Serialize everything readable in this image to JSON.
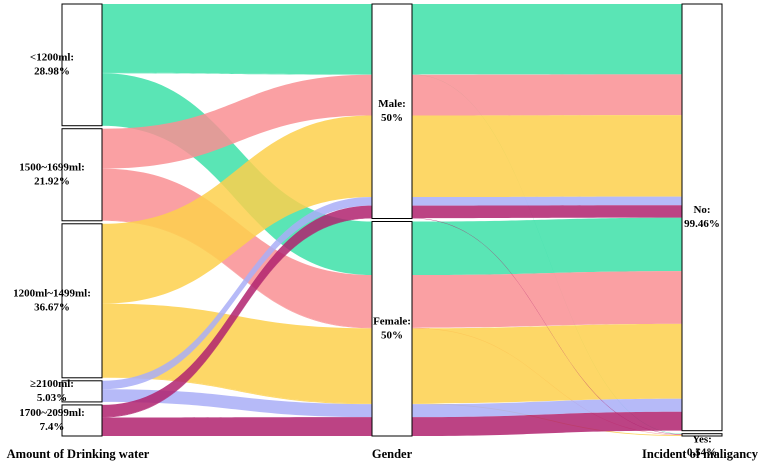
{
  "chart_data": {
    "type": "alluvial",
    "axes": [
      {
        "label": "Amount of Drinking water",
        "nodes": [
          {
            "name": "<1200ml:",
            "value": 28.98,
            "value_label": "28.98%",
            "color": "#3de0a8"
          },
          {
            "name": "1500~1699ml:",
            "value": 21.92,
            "value_label": "21.92%",
            "color": "#f98f93"
          },
          {
            "name": "1200ml~1499ml:",
            "value": 36.67,
            "value_label": "36.67%",
            "color": "#fdd04c"
          },
          {
            "name": "≥2100ml:",
            "value": 5.03,
            "value_label": "5.03%",
            "color": "#a9aef7"
          },
          {
            "name": "1700~2099ml:",
            "value": 7.4,
            "value_label": "7.4%",
            "color": "#b0226e"
          }
        ]
      },
      {
        "label": "Gender",
        "nodes": [
          {
            "name": "Male:",
            "value": 50,
            "value_label": "50%"
          },
          {
            "name": "Female:",
            "value": 50,
            "value_label": "50%"
          }
        ]
      },
      {
        "label": "Incident of maligancy",
        "nodes": [
          {
            "name": "No:",
            "value": 99.46,
            "value_label": "99.46%"
          },
          {
            "name": "Yes:",
            "value": 0.54,
            "value_label": "0.54%"
          }
        ]
      }
    ],
    "flows": [
      {
        "nodes": [
          "<1200ml:",
          "Male:",
          "No:"
        ],
        "value": 16.4
      },
      {
        "nodes": [
          "<1200ml:",
          "Male:",
          "Yes:"
        ],
        "value": 0.1
      },
      {
        "nodes": [
          "<1200ml:",
          "Female:",
          "No:"
        ],
        "value": 12.48
      },
      {
        "nodes": [
          "1500~1699ml:",
          "Male:",
          "No:"
        ],
        "value": 9.5
      },
      {
        "nodes": [
          "1500~1699ml:",
          "Female:",
          "No:"
        ],
        "value": 12.28
      },
      {
        "nodes": [
          "1500~1699ml:",
          "Female:",
          "Yes:"
        ],
        "value": 0.14
      },
      {
        "nodes": [
          "1200ml~1499ml:",
          "Male:",
          "No:"
        ],
        "value": 19
      },
      {
        "nodes": [
          "1200ml~1499ml:",
          "Female:",
          "No:"
        ],
        "value": 17.47
      },
      {
        "nodes": [
          "1200ml~1499ml:",
          "Female:",
          "Yes:"
        ],
        "value": 0.2
      },
      {
        "nodes": [
          "≥2100ml:",
          "Male:",
          "No:"
        ],
        "value": 2
      },
      {
        "nodes": [
          "≥2100ml:",
          "Female:",
          "No:"
        ],
        "value": 3.03
      },
      {
        "nodes": [
          "1700~2099ml:",
          "Male:",
          "No:"
        ],
        "value": 2.9
      },
      {
        "nodes": [
          "1700~2099ml:",
          "Male:",
          "Yes:"
        ],
        "value": 0.1
      },
      {
        "nodes": [
          "1700~2099ml:",
          "Female:",
          "No:"
        ],
        "value": 4.4
      }
    ]
  }
}
